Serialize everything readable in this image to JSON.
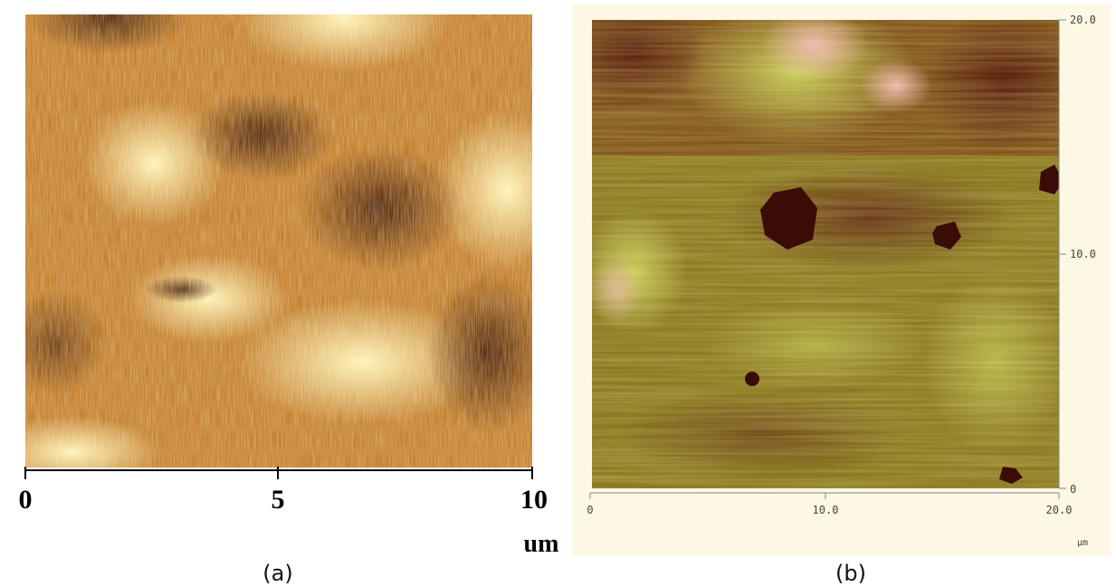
{
  "panels": [
    {
      "caption": "(a)",
      "x_ticks": [
        "0",
        "5",
        "10"
      ],
      "unit": "um"
    },
    {
      "caption": "(b)",
      "x_ticks": [
        "0",
        "10.0",
        "20.0"
      ],
      "y_ticks": [
        "0",
        "10.0",
        "20.0"
      ],
      "unit": "µm"
    }
  ]
}
